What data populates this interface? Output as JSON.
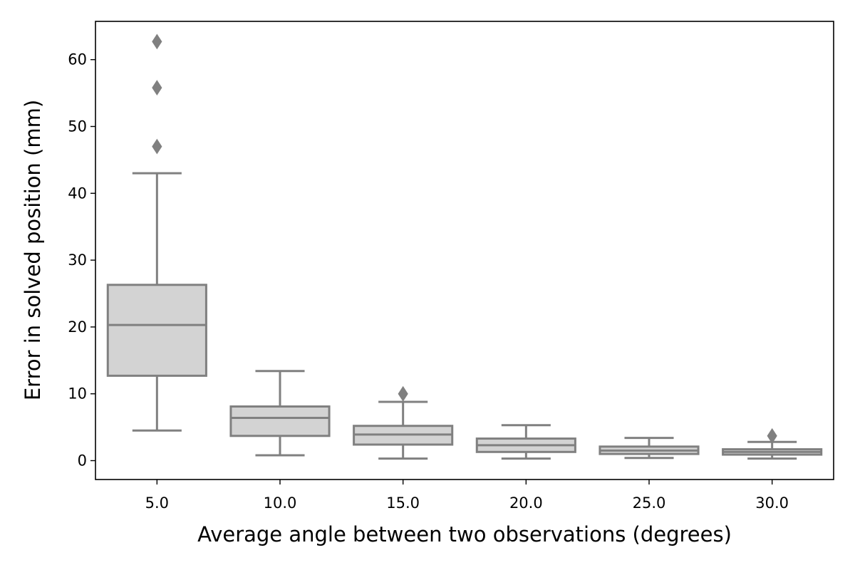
{
  "chart_data": {
    "type": "box",
    "title": "",
    "xlabel": "Average angle between two observations (degrees)",
    "ylabel": "Error in solved position (mm)",
    "categories": [
      "5.0",
      "10.0",
      "15.0",
      "20.0",
      "25.0",
      "30.0"
    ],
    "yticks": [
      "0",
      "10",
      "20",
      "30",
      "40",
      "50",
      "60"
    ],
    "ylim": [
      -3,
      66
    ],
    "grid": false,
    "legend": "none",
    "box_fill": "#d3d3d3",
    "line_color": "#808080",
    "boxes": [
      {
        "category": "5.0",
        "whisker_low": 4.5,
        "q1": 12.7,
        "median": 20.3,
        "q3": 26.3,
        "whisker_high": 43.0,
        "outliers": [
          47.0,
          55.8,
          62.7
        ]
      },
      {
        "category": "10.0",
        "whisker_low": 0.8,
        "q1": 3.7,
        "median": 6.4,
        "q3": 8.1,
        "whisker_high": 13.4,
        "outliers": []
      },
      {
        "category": "15.0",
        "whisker_low": 0.3,
        "q1": 2.4,
        "median": 3.9,
        "q3": 5.2,
        "whisker_high": 8.8,
        "outliers": [
          10.0
        ]
      },
      {
        "category": "20.0",
        "whisker_low": 0.3,
        "q1": 1.3,
        "median": 2.3,
        "q3": 3.3,
        "whisker_high": 5.3,
        "outliers": []
      },
      {
        "category": "25.0",
        "whisker_low": 0.4,
        "q1": 1.0,
        "median": 1.5,
        "q3": 2.1,
        "whisker_high": 3.4,
        "outliers": []
      },
      {
        "category": "30.0",
        "whisker_low": 0.3,
        "q1": 0.9,
        "median": 1.3,
        "q3": 1.7,
        "whisker_high": 2.8,
        "outliers": [
          3.7
        ]
      }
    ]
  }
}
